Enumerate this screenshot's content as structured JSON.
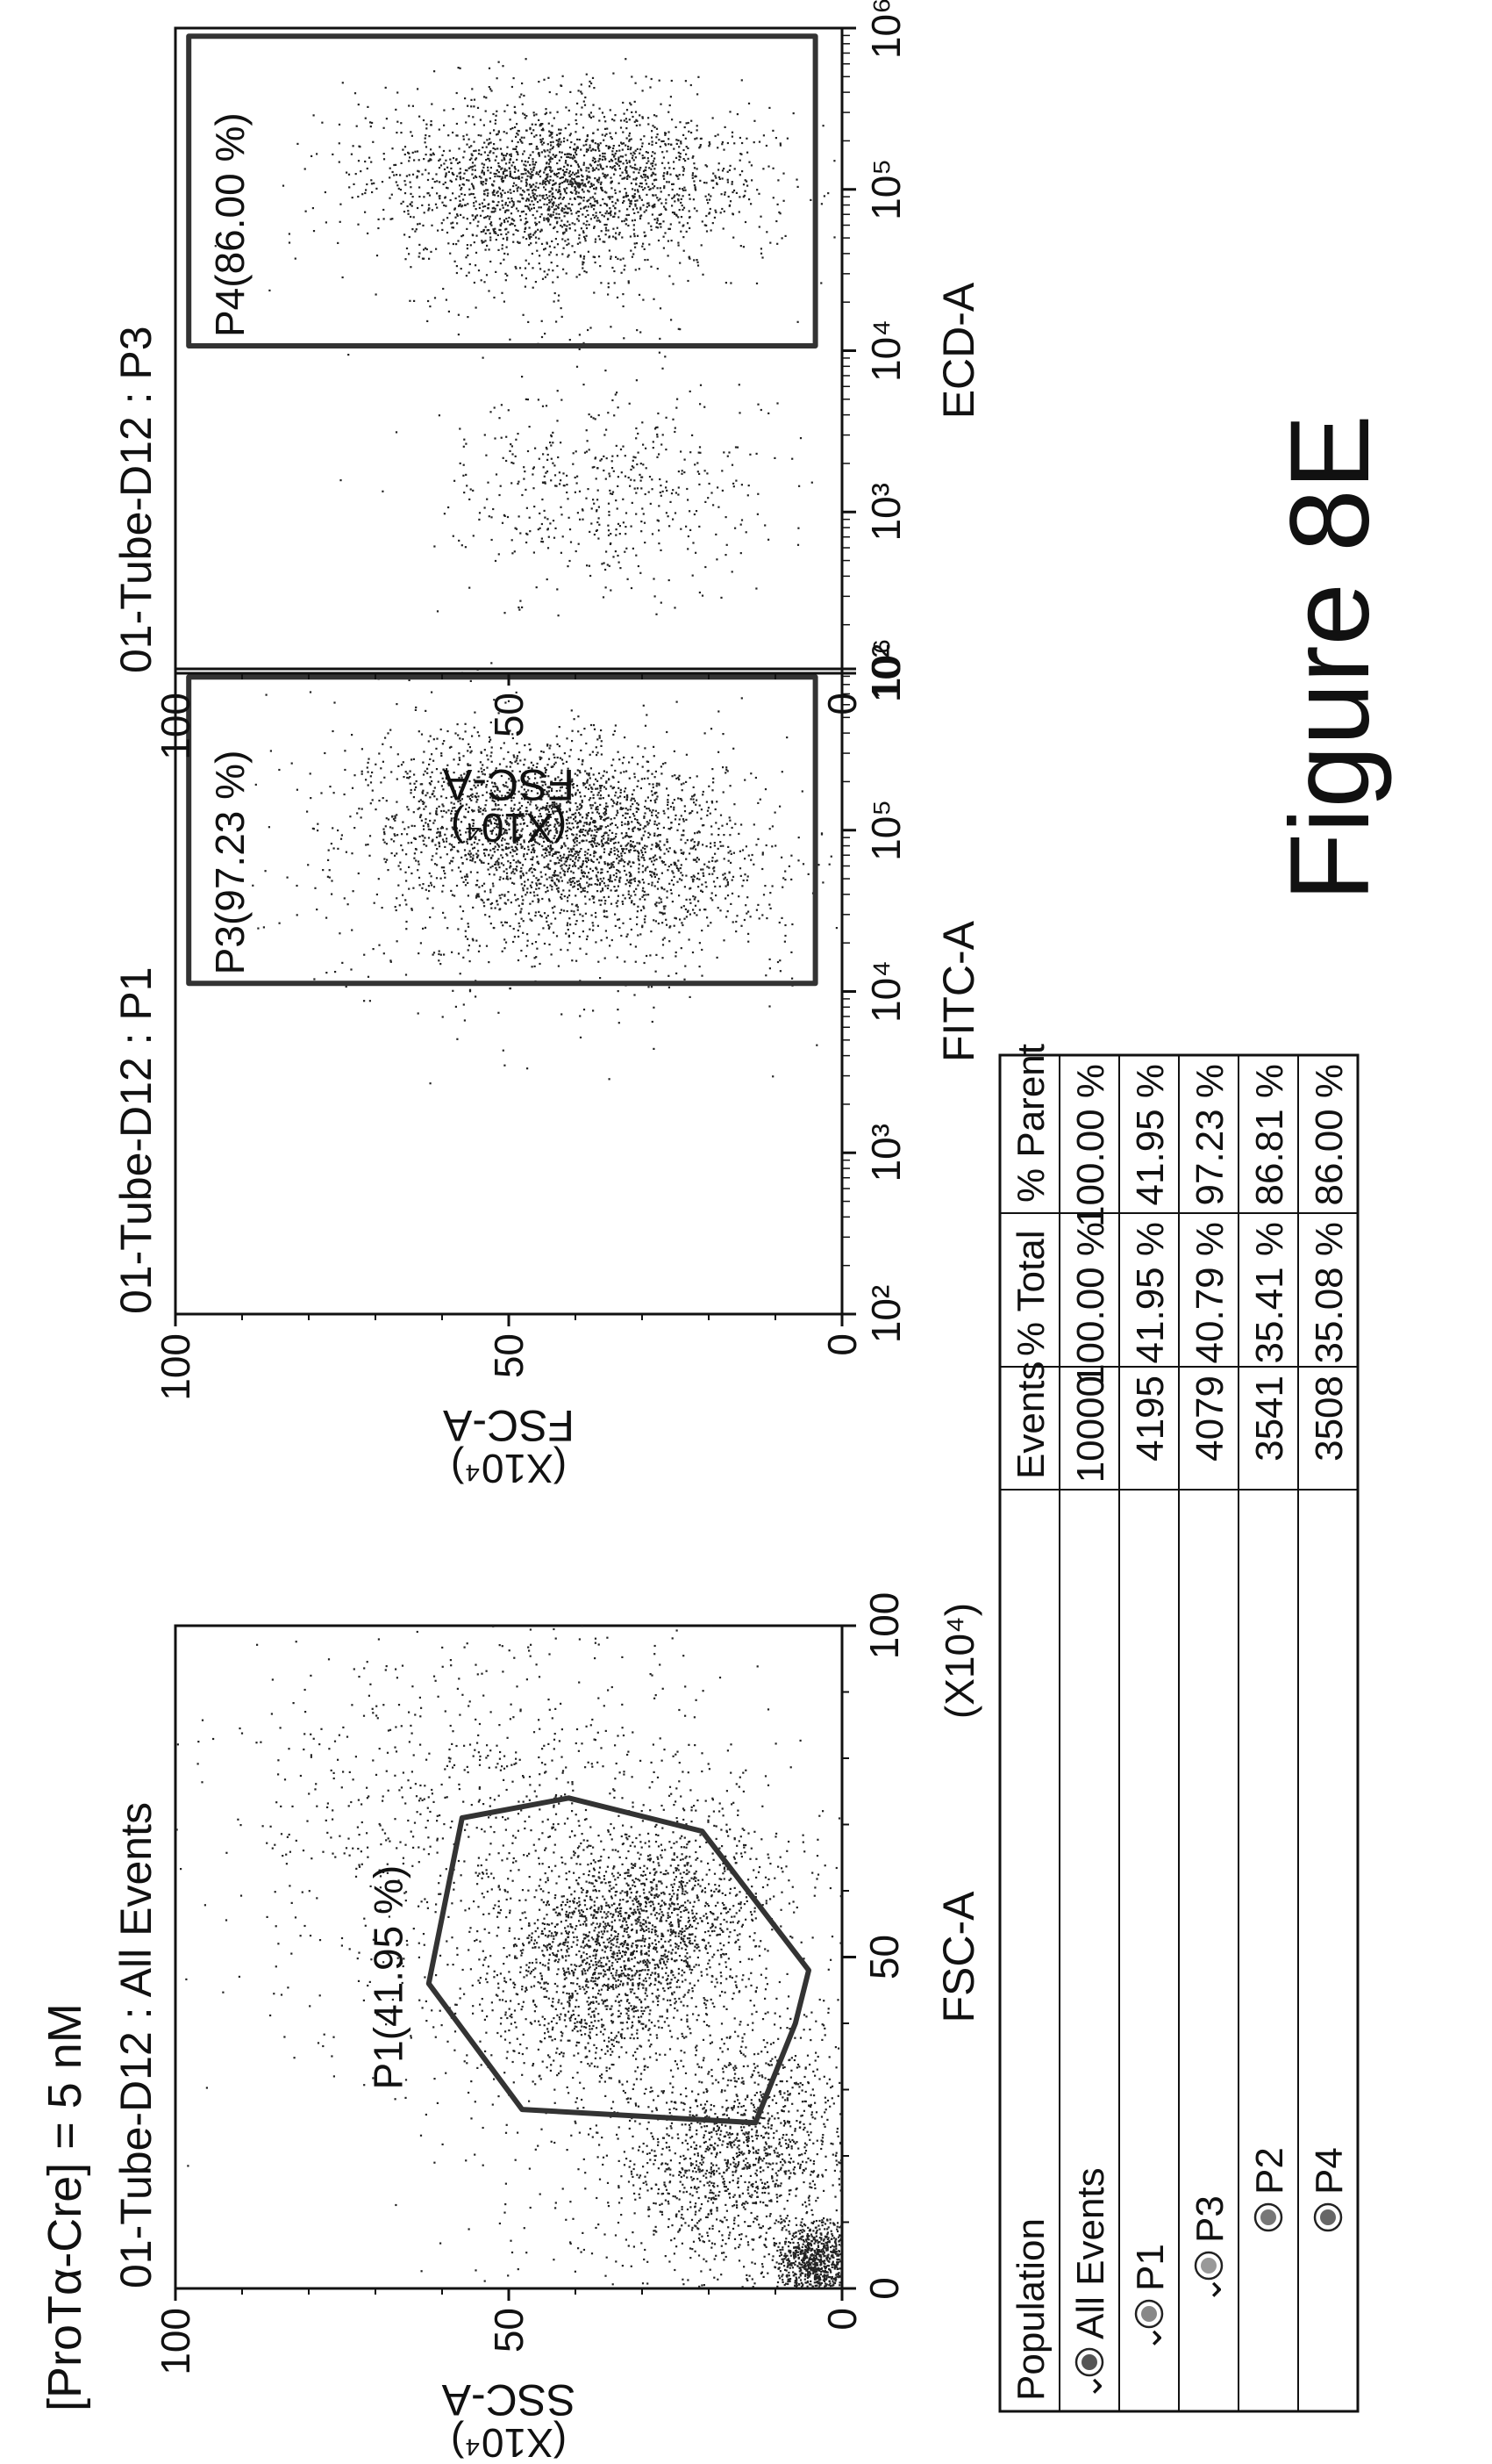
{
  "figure": {
    "condition": "[ProTα-Cre] = 5 nM",
    "caption": "Figure 8E"
  },
  "chart_data": [
    {
      "type": "scatter",
      "title": "01-Tube-D12 : All Events",
      "xlabel": "FSC-A",
      "xunit": "(X10⁴)",
      "ylabel": "SSC-A",
      "yunit": "(X10⁴)",
      "xscale": "linear",
      "xlim": [
        0,
        100
      ],
      "ylim": [
        0,
        100
      ],
      "xticks": [
        "0",
        "50",
        "100"
      ],
      "yticks": [
        "0",
        "50",
        "100"
      ],
      "grid": false,
      "gate": {
        "label": "P1(41.95 %)",
        "polygon": [
          [
            25,
            13
          ],
          [
            40,
            7
          ],
          [
            48,
            5
          ],
          [
            69,
            21
          ],
          [
            74,
            41
          ],
          [
            71,
            57
          ],
          [
            46,
            62
          ],
          [
            27,
            48
          ],
          [
            25,
            13
          ]
        ]
      },
      "clusters": [
        {
          "cx": 52,
          "cy": 32,
          "sx": 9,
          "sy": 10,
          "n": 2200,
          "rho": -0.35
        },
        {
          "cx": 20,
          "cy": 15,
          "sx": 9,
          "sy": 9,
          "n": 1400,
          "rho": -0.3
        },
        {
          "cx": 4,
          "cy": 4,
          "sx": 3,
          "sy": 3,
          "n": 900,
          "rho": 0
        },
        {
          "cx": 70,
          "cy": 55,
          "sx": 16,
          "sy": 20,
          "n": 900,
          "rho": 0
        },
        {
          "cx": 35,
          "cy": 25,
          "sx": 25,
          "sy": 22,
          "n": 600,
          "rho": 0
        }
      ]
    },
    {
      "type": "scatter",
      "title": "01-Tube-D12 : P1",
      "xlabel": "FITC-A",
      "ylabel": "FSC-A",
      "yunit": "(X10⁴)",
      "xscale": "log",
      "xlim": [
        2,
        6
      ],
      "ylim": [
        0,
        100
      ],
      "xticks": [
        "10²",
        "10³",
        "10⁴",
        "10⁵",
        "10⁶"
      ],
      "yticks": [
        "0",
        "50",
        "100"
      ],
      "grid": false,
      "gate": {
        "label": "P3(97.23 %)",
        "polygon": [
          [
            4.05,
            4
          ],
          [
            5.95,
            4
          ],
          [
            5.95,
            98
          ],
          [
            5.95,
            98
          ],
          [
            4.05,
            98
          ]
        ]
      },
      "clusters": [
        {
          "cx": 5.0,
          "cy": 42,
          "sx": 0.3,
          "sy": 14,
          "n": 2600,
          "rho": 0.3
        },
        {
          "cx": 4.6,
          "cy": 45,
          "sx": 0.35,
          "sy": 18,
          "n": 500,
          "rho": 0
        },
        {
          "cx": 3.7,
          "cy": 40,
          "sx": 0.3,
          "sy": 15,
          "n": 20,
          "rho": 0
        }
      ]
    },
    {
      "type": "scatter",
      "title": "01-Tube-D12 : P3",
      "xlabel": "ECD-A",
      "ylabel": "FSC-A",
      "yunit": "(X10⁴)",
      "xscale": "log",
      "xlim": [
        2,
        6
      ],
      "ylim": [
        0,
        100
      ],
      "xticks": [
        "10²",
        "10³",
        "10⁴",
        "10⁵",
        "10⁶"
      ],
      "yticks": [
        "0",
        "50",
        "100"
      ],
      "grid": false,
      "gate": {
        "label": "P4(86.00 %)",
        "polygon": [
          [
            4.03,
            4
          ],
          [
            5.95,
            4
          ],
          [
            5.95,
            98
          ],
          [
            4.03,
            98
          ]
        ]
      },
      "clusters": [
        {
          "cx": 5.05,
          "cy": 42,
          "sx": 0.25,
          "sy": 14,
          "n": 2300,
          "rho": 0
        },
        {
          "cx": 3.15,
          "cy": 36,
          "sx": 0.3,
          "sy": 12,
          "n": 500,
          "rho": 0
        },
        {
          "cx": 4.4,
          "cy": 42,
          "sx": 0.35,
          "sy": 16,
          "n": 150,
          "rho": 0
        }
      ]
    },
    {
      "type": "table",
      "columns": [
        "Population",
        "Events",
        "% Total",
        "% Parent"
      ],
      "rows": [
        {
          "population": "All Events",
          "level": 0,
          "chevron": "⌄",
          "events": "10000",
          "total": "100.00 %",
          "parent": "100.00 %"
        },
        {
          "population": "P1",
          "level": 1,
          "chevron": "⌄",
          "events": "4195",
          "total": "41.95 %",
          "parent": "41.95 %"
        },
        {
          "population": "P3",
          "level": 2,
          "chevron": "⌄",
          "events": "4079",
          "total": "40.79 %",
          "parent": "97.23 %"
        },
        {
          "population": "P2",
          "level": 3,
          "chevron": "",
          "events": "3541",
          "total": "35.41 %",
          "parent": "86.81 %"
        },
        {
          "population": "P4",
          "level": 3,
          "chevron": "",
          "events": "3508",
          "total": "35.08 %",
          "parent": "86.00 %"
        }
      ]
    }
  ]
}
